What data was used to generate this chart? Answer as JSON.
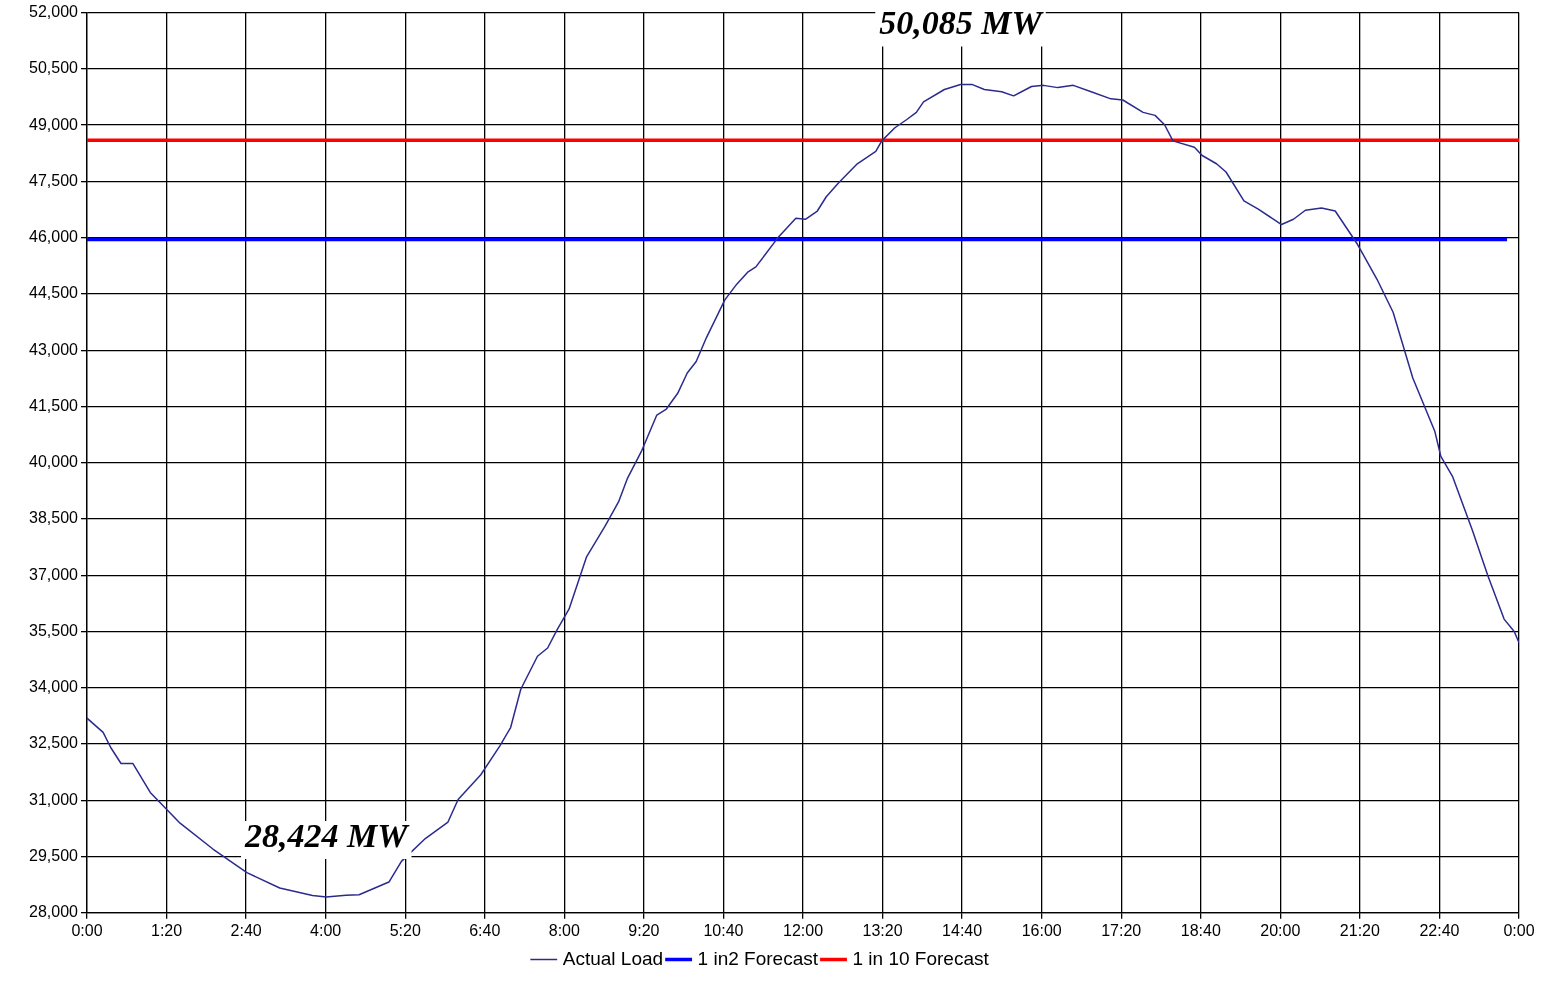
{
  "chart_data": {
    "type": "line",
    "xlim": [
      0,
      24
    ],
    "xticks": [
      {
        "value": 0,
        "label": "0:00"
      },
      {
        "value": 1.3333,
        "label": "1:20"
      },
      {
        "value": 2.6667,
        "label": "2:40"
      },
      {
        "value": 4,
        "label": "4:00"
      },
      {
        "value": 5.3333,
        "label": "5:20"
      },
      {
        "value": 6.6667,
        "label": "6:40"
      },
      {
        "value": 8,
        "label": "8:00"
      },
      {
        "value": 9.3333,
        "label": "9:20"
      },
      {
        "value": 10.6667,
        "label": "10:40"
      },
      {
        "value": 12,
        "label": "12:00"
      },
      {
        "value": 13.3333,
        "label": "13:20"
      },
      {
        "value": 14.6667,
        "label": "14:40"
      },
      {
        "value": 16,
        "label": "16:00"
      },
      {
        "value": 17.3333,
        "label": "17:20"
      },
      {
        "value": 18.6667,
        "label": "18:40"
      },
      {
        "value": 20,
        "label": "20:00"
      },
      {
        "value": 21.3333,
        "label": "21:20"
      },
      {
        "value": 22.6667,
        "label": "22:40"
      },
      {
        "value": 24,
        "label": "0:00"
      }
    ],
    "ylim": [
      28000,
      52000
    ],
    "yticks": [
      {
        "value": 28000,
        "label": "28,000"
      },
      {
        "value": 29500,
        "label": "29,500"
      },
      {
        "value": 31000,
        "label": "31,000"
      },
      {
        "value": 32500,
        "label": "32,500"
      },
      {
        "value": 34000,
        "label": "34,000"
      },
      {
        "value": 35500,
        "label": "35,500"
      },
      {
        "value": 37000,
        "label": "37,000"
      },
      {
        "value": 38500,
        "label": "38,500"
      },
      {
        "value": 40000,
        "label": "40,000"
      },
      {
        "value": 41500,
        "label": "41,500"
      },
      {
        "value": 43000,
        "label": "43,000"
      },
      {
        "value": 44500,
        "label": "44,500"
      },
      {
        "value": 46000,
        "label": "46,000"
      },
      {
        "value": 47500,
        "label": "47,500"
      },
      {
        "value": 49000,
        "label": "49,000"
      },
      {
        "value": 50500,
        "label": "50,500"
      },
      {
        "value": 52000,
        "label": "52,000"
      }
    ],
    "grid": true,
    "legend": "bottom",
    "marker": "none",
    "line_style": "solid",
    "series": [
      {
        "name": "Actual Load",
        "color": "#2b2b8f",
        "x": [
          0,
          0.27,
          0.4,
          0.57,
          0.77,
          1.06,
          1.56,
          2.11,
          2.68,
          3.23,
          3.78,
          4.01,
          4.34,
          4.56,
          5.06,
          5.27,
          5.67,
          6.05,
          6.22,
          6.6,
          6.92,
          7.1,
          7.27,
          7.55,
          7.72,
          7.88,
          8.08,
          8.37,
          8.68,
          8.91,
          9.06,
          9.3,
          9.55,
          9.71,
          9.9,
          10.06,
          10.21,
          10.38,
          10.69,
          10.89,
          11.08,
          11.21,
          11.59,
          11.88,
          12.04,
          12.24,
          12.39,
          12.59,
          12.91,
          13.22,
          13.32,
          13.54,
          13.74,
          13.9,
          14.02,
          14.37,
          14.64,
          14.84,
          15.04,
          15.33,
          15.53,
          15.83,
          16.03,
          16.27,
          16.53,
          16.83,
          17.16,
          17.36,
          17.7,
          17.9,
          18.06,
          18.2,
          18.56,
          18.69,
          18.93,
          19.09,
          19.39,
          19.63,
          20.02,
          20.22,
          20.42,
          20.69,
          20.92,
          21.29,
          21.62,
          21.89,
          22.22,
          22.59,
          22.69,
          22.89,
          23.22,
          23.48,
          23.75,
          23.92,
          24
        ],
        "values": [
          33190,
          32810,
          32400,
          31980,
          31980,
          31210,
          30390,
          29700,
          29070,
          28660,
          28460,
          28424,
          28470,
          28480,
          28820,
          29370,
          29980,
          30420,
          31020,
          31680,
          32450,
          32940,
          33960,
          34840,
          35060,
          35550,
          36100,
          37480,
          38300,
          38960,
          39590,
          40330,
          41270,
          41430,
          41850,
          42390,
          42700,
          43330,
          44340,
          44760,
          45090,
          45220,
          46020,
          46520,
          46490,
          46710,
          47090,
          47450,
          47970,
          48300,
          48580,
          48930,
          49150,
          49340,
          49620,
          49950,
          50085,
          50080,
          49950,
          49890,
          49780,
          50030,
          50060,
          50000,
          50060,
          49890,
          49700,
          49670,
          49340,
          49260,
          49010,
          48580,
          48410,
          48190,
          47970,
          47750,
          46980,
          46760,
          46350,
          46490,
          46730,
          46790,
          46710,
          45830,
          44890,
          44010,
          42260,
          40830,
          40170,
          39620,
          38190,
          36980,
          35830,
          35500,
          35200
        ]
      },
      {
        "name": "1 in2 Forecast",
        "color": "#0000ff",
        "x": [
          0,
          23.8
        ],
        "values": [
          45950,
          45950
        ]
      },
      {
        "name": "1 in 10 Forecast",
        "color": "#ff0000",
        "x": [
          0,
          24
        ],
        "values": [
          48600,
          48600
        ]
      }
    ],
    "annotations": [
      {
        "text": "28,424 MW",
        "x": 4.01,
        "y": 28424
      },
      {
        "text": "50,085 MW",
        "x": 14.64,
        "y": 50085
      }
    ]
  }
}
